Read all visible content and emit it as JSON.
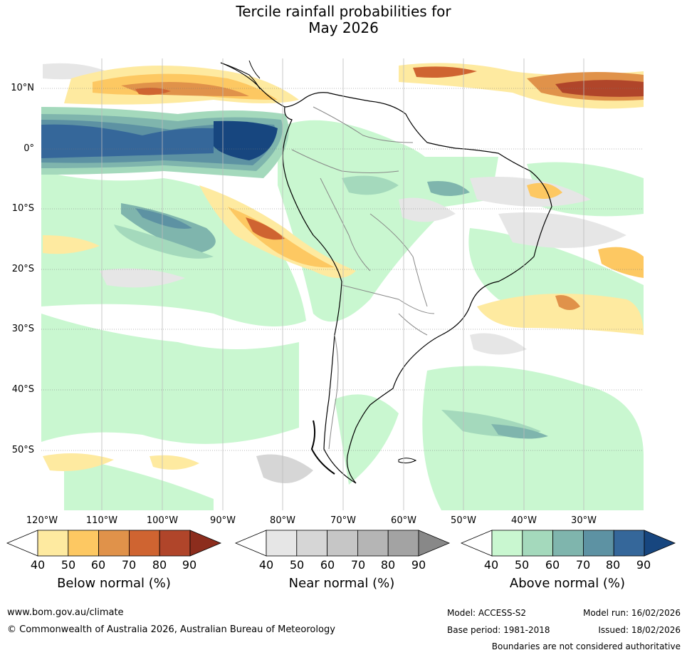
{
  "title_line1": "Tercile rainfall probabilities for",
  "title_line2": "May 2026",
  "lat_labels": [
    "10°N",
    "0°",
    "10°S",
    "20°S",
    "30°S",
    "40°S",
    "50°S"
  ],
  "lon_labels": [
    "120°W",
    "110°W",
    "100°W",
    "90°W",
    "80°W",
    "70°W",
    "60°W",
    "50°W",
    "40°W",
    "30°W"
  ],
  "colorbars": [
    {
      "title": "Below normal (%)",
      "ticks": [
        "40",
        "50",
        "60",
        "70",
        "80",
        "90"
      ],
      "colors": [
        "#ffffff",
        "#feeaa0",
        "#fdc862",
        "#e0924a",
        "#cf6431",
        "#b0452a",
        "#8c2d1d"
      ]
    },
    {
      "title": "Near normal (%)",
      "ticks": [
        "40",
        "50",
        "60",
        "70",
        "80",
        "90"
      ],
      "colors": [
        "#ffffff",
        "#e6e6e6",
        "#d6d6d6",
        "#c6c6c6",
        "#b5b5b5",
        "#a3a3a3",
        "#888888"
      ]
    },
    {
      "title": "Above normal (%)",
      "ticks": [
        "40",
        "50",
        "60",
        "70",
        "80",
        "90"
      ],
      "colors": [
        "#ffffff",
        "#c9f7d0",
        "#a4d9bc",
        "#7fb5ad",
        "#5d92a3",
        "#35679a",
        "#17467f"
      ]
    }
  ],
  "footer": {
    "website": "www.bom.gov.au/climate",
    "copyright": "© Commonwealth of Australia 2026, Australian Bureau of Meteorology",
    "model": "Model: ACCESS-S2",
    "model_run": "Model run: 16/02/2026",
    "base_period": "Base period: 1981-2018",
    "issued": "Issued: 18/02/2026",
    "disclaimer": "Boundaries are not considered authoritative"
  }
}
